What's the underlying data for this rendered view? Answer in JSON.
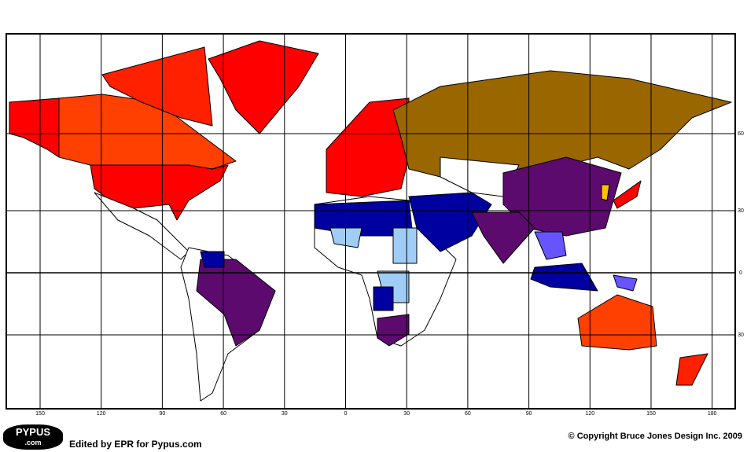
{
  "map": {
    "longitude_labels": [
      150,
      120,
      90,
      60,
      30,
      0,
      30,
      60,
      90,
      120,
      150,
      180
    ],
    "latitude_labels": [
      60,
      30,
      0,
      30
    ]
  },
  "footer": {
    "logo": "PYPUS",
    "logo_sub": ".com",
    "credit": "Edited by EPR for Pypus.com",
    "copyright": "© Copyright Bruce Jones Design Inc. 2009"
  }
}
